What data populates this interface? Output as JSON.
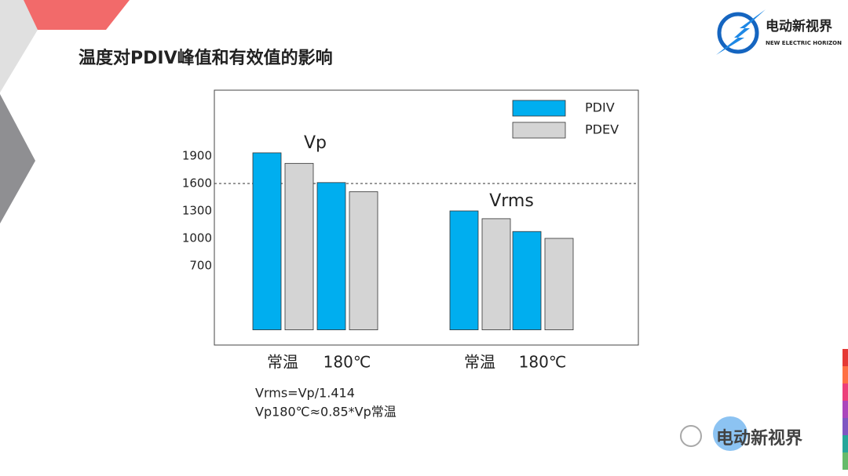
{
  "chart_data": {
    "type": "grouped-bar",
    "title": "温度对PDIV峰值和有效值的影响",
    "groups": [
      "Vp",
      "Vrms"
    ],
    "categories": [
      "常温",
      "180℃",
      "常温",
      "180℃"
    ],
    "series": [
      {
        "name": "PDIV",
        "color": "#00aeef",
        "values": [
          1935,
          1610,
          1300,
          1075
        ]
      },
      {
        "name": "PDEV",
        "color": "#d4d4d4",
        "values": [
          1820,
          1510,
          1215,
          1000
        ]
      }
    ],
    "ylim": [
      -166,
      2620
    ],
    "yticks": [
      700,
      1000,
      1300,
      1600,
      1900
    ],
    "reference_line": 1600,
    "grid": false,
    "legend": "top-right",
    "annotations": [
      "Vrms=Vp/1.414",
      "Vp180℃≈0.85*Vp常温"
    ]
  },
  "logo": {
    "name": "电动新视界",
    "tagline": "NEW ELECTRIC HORIZON"
  },
  "watermark": "电动新视界"
}
